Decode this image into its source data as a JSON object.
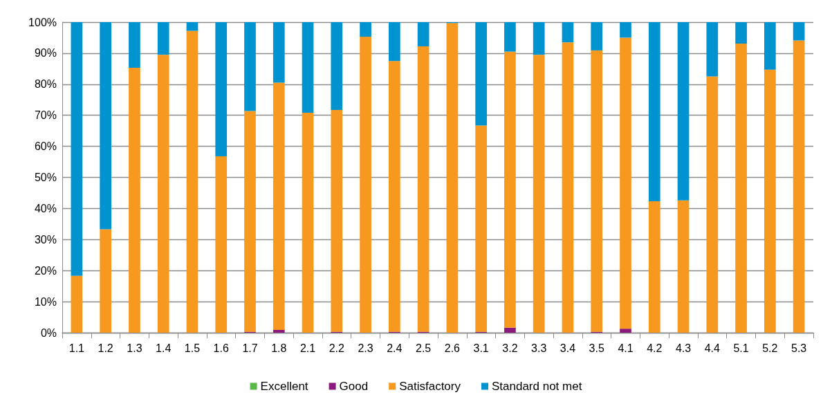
{
  "chart_data": {
    "type": "bar",
    "stacked": true,
    "categories": [
      "1.1",
      "1.2",
      "1.3",
      "1.4",
      "1.5",
      "1.6",
      "1.7",
      "1.8",
      "2.1",
      "2.2",
      "2.3",
      "2.4",
      "2.5",
      "2.6",
      "3.1",
      "3.2",
      "3.3",
      "3.4",
      "3.5",
      "4.1",
      "4.2",
      "4.3",
      "4.4",
      "5.1",
      "5.2",
      "5.3"
    ],
    "series": [
      {
        "name": "Excellent",
        "color": "#5ab946",
        "values": [
          0,
          0,
          0,
          0,
          0,
          0,
          0,
          0,
          0,
          0,
          0,
          0,
          0,
          0,
          0,
          0,
          0,
          0,
          0,
          0,
          0,
          0,
          0,
          0,
          0,
          0
        ]
      },
      {
        "name": "Good",
        "color": "#8b1a7e",
        "values": [
          0,
          0,
          0,
          0,
          0,
          0,
          0.3,
          0.9,
          0,
          0.3,
          0,
          0.3,
          0.3,
          0,
          0.3,
          1.6,
          0,
          0,
          0.3,
          1.3,
          0,
          0,
          0,
          0,
          0,
          0
        ]
      },
      {
        "name": "Satisfactory",
        "color": "#f7981f",
        "values": [
          18.3,
          33.3,
          85.3,
          89.5,
          97.2,
          56.8,
          71.1,
          79.6,
          70.8,
          71.4,
          95.3,
          87.2,
          91.9,
          99.7,
          66.4,
          88.9,
          89.5,
          93.5,
          90.6,
          93.7,
          42.3,
          42.6,
          82.5,
          93.1,
          84.7,
          94.1
        ]
      },
      {
        "name": "Standard not met",
        "color": "#0093d0",
        "values": [
          81.7,
          66.7,
          14.7,
          10.5,
          2.8,
          43.2,
          28.6,
          19.5,
          29.2,
          28.3,
          4.7,
          12.5,
          7.8,
          0.3,
          33.3,
          9.5,
          10.5,
          6.5,
          9.1,
          5.0,
          57.7,
          57.4,
          17.5,
          6.9,
          15.3,
          5.9
        ]
      }
    ],
    "ylim": [
      0,
      100
    ],
    "yticks": [
      {
        "value": 0,
        "label": "0%"
      },
      {
        "value": 10,
        "label": "10%"
      },
      {
        "value": 20,
        "label": "20%"
      },
      {
        "value": 30,
        "label": "30%"
      },
      {
        "value": 40,
        "label": "40%"
      },
      {
        "value": 50,
        "label": "50%"
      },
      {
        "value": 60,
        "label": "60%"
      },
      {
        "value": 70,
        "label": "70%"
      },
      {
        "value": 80,
        "label": "80%"
      },
      {
        "value": 90,
        "label": "90%"
      },
      {
        "value": 100,
        "label": "100%"
      }
    ],
    "grid": "y",
    "legend": "bottom"
  }
}
